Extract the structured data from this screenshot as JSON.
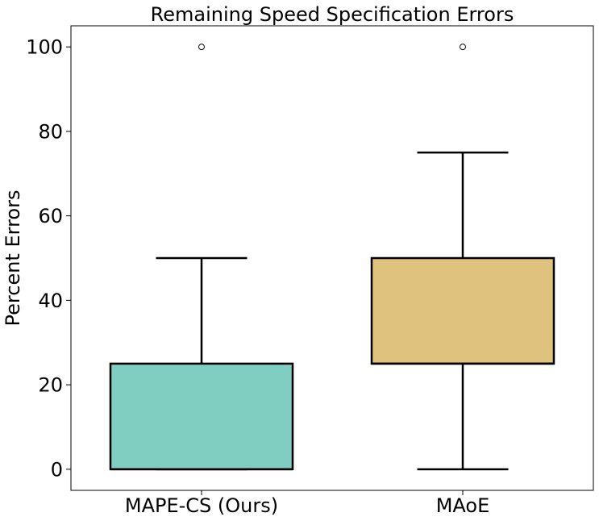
{
  "chart_data": {
    "type": "box",
    "title": "Remaining Speed Specification Errors",
    "xlabel": "",
    "ylabel": "Percent Errors",
    "ylim": [
      -5,
      105
    ],
    "yticks": [
      0,
      20,
      40,
      60,
      80,
      100
    ],
    "yticklabels": [
      "0",
      "20",
      "40",
      "60",
      "80",
      "100"
    ],
    "grid": false,
    "categories": [
      "MAPE-CS (Ours)",
      "MAoE"
    ],
    "boxes": [
      {
        "category": "MAPE-CS (Ours)",
        "whisker_low": 0,
        "q1": 0,
        "median": 0,
        "q3": 25,
        "whisker_high": 50,
        "outliers": [
          100
        ],
        "color": "#80cdc1"
      },
      {
        "category": "MAoE",
        "whisker_low": 0,
        "q1": 25,
        "median": 25,
        "q3": 50,
        "whisker_high": 75,
        "outliers": [
          100
        ],
        "color": "#dfc27d"
      }
    ]
  }
}
